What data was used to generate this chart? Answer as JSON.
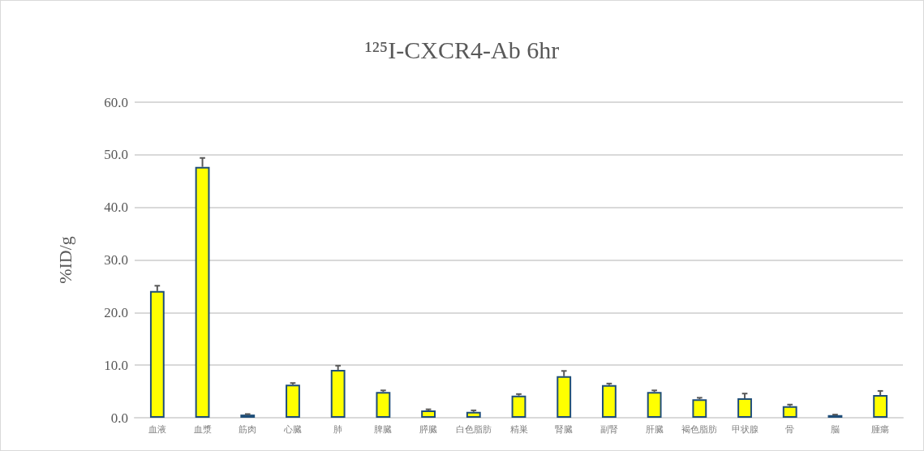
{
  "chart_data": {
    "type": "bar",
    "title": "¹²⁵I-CXCR4-Ab 6hr",
    "ylabel": "%ID/g",
    "categories": [
      "血液",
      "血漿",
      "筋肉",
      "心臓",
      "肺",
      "脾臓",
      "膵臓",
      "白色脂肪",
      "精巣",
      "腎臓",
      "副腎",
      "肝臓",
      "褐色脂肪",
      "甲状腺",
      "骨",
      "脳",
      "腫瘍"
    ],
    "values": [
      24.1,
      47.7,
      0.6,
      6.3,
      9.1,
      4.9,
      1.4,
      1.1,
      4.2,
      7.9,
      6.2,
      4.9,
      3.5,
      3.7,
      2.2,
      0.5,
      4.3
    ],
    "errors": [
      [
        24.1,
        25.1
      ],
      [
        47.7,
        49.4
      ],
      [
        0.6,
        0.7
      ],
      [
        6.3,
        6.6
      ],
      [
        9.1,
        9.9
      ],
      [
        4.9,
        5.2
      ],
      [
        1.4,
        1.6
      ],
      [
        1.1,
        1.4
      ],
      [
        4.2,
        4.5
      ],
      [
        7.9,
        8.9
      ],
      [
        6.2,
        6.5
      ],
      [
        4.9,
        5.2
      ],
      [
        3.5,
        3.8
      ],
      [
        3.7,
        4.6
      ],
      [
        2.2,
        2.5
      ],
      [
        0.5,
        0.6
      ],
      [
        4.3,
        5.1
      ]
    ],
    "color": "#ffff00",
    "ylim": [
      0,
      60
    ],
    "yticks": [
      {
        "value": 0,
        "label": "0.0"
      },
      {
        "value": 10,
        "label": "10.0"
      },
      {
        "value": 20,
        "label": "20.0"
      },
      {
        "value": 30,
        "label": "30.0"
      },
      {
        "value": 40,
        "label": "40.0"
      },
      {
        "value": 50,
        "label": "50.0"
      },
      {
        "value": 60,
        "label": "60.0"
      }
    ],
    "grid": "y"
  }
}
